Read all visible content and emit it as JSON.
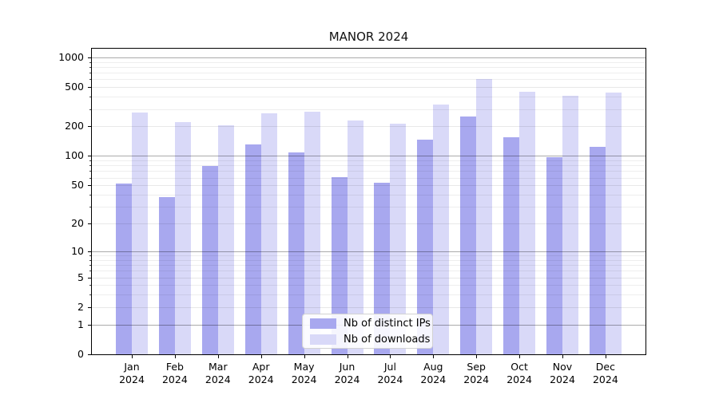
{
  "chart_data": {
    "type": "bar",
    "title": "MANOR 2024",
    "categories": [
      "Jan 2024",
      "Feb 2024",
      "Mar 2024",
      "Apr 2024",
      "May 2024",
      "Jun 2024",
      "Jul 2024",
      "Aug 2024",
      "Sep 2024",
      "Oct 2024",
      "Nov 2024",
      "Dec 2024"
    ],
    "series": [
      {
        "name": "Nb of distinct IPs",
        "slug": "distinct-ips",
        "color": "#a8a8ef",
        "values": [
          52,
          38,
          79,
          130,
          108,
          61,
          53,
          148,
          253,
          156,
          97,
          123
        ]
      },
      {
        "name": "Nb of downloads",
        "slug": "downloads",
        "color": "#d9d9f8",
        "values": [
          276,
          220,
          204,
          270,
          281,
          229,
          215,
          334,
          600,
          452,
          410,
          443
        ]
      }
    ],
    "yscale": "log(1+y)",
    "ylim": [
      0,
      1220
    ],
    "yticks": [
      0,
      1,
      2,
      5,
      10,
      20,
      50,
      100,
      200,
      500,
      1000
    ],
    "ytick_decades": [
      1,
      10,
      100,
      1000
    ],
    "ytick_minor": [
      3,
      4,
      6,
      7,
      8,
      9,
      30,
      40,
      60,
      70,
      80,
      90,
      300,
      400,
      600,
      700,
      800,
      900
    ],
    "grid": "on",
    "legend": {
      "position": "lower center",
      "entries": [
        "Nb of distinct IPs",
        "Nb of downloads"
      ]
    }
  }
}
